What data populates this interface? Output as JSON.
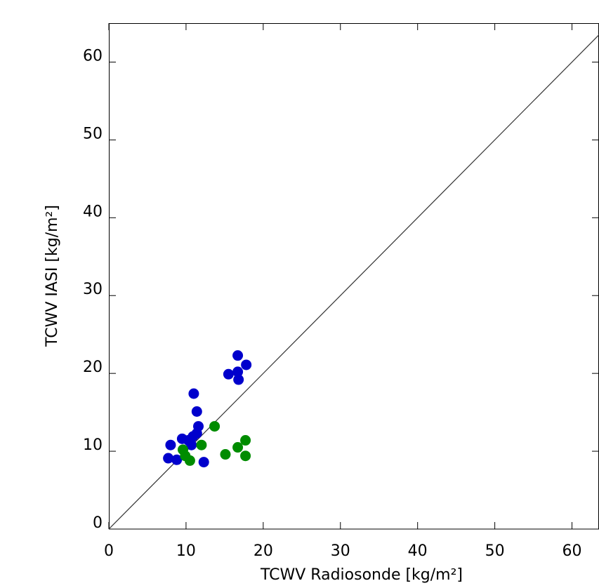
{
  "chart_data": {
    "type": "scatter",
    "x_label": "TCWV Radiosonde [kg/m²]",
    "y_label": "TCWV IASI [kg/m²]",
    "xlim": [
      0,
      63.5
    ],
    "ylim": [
      0,
      65
    ],
    "xticks": [
      0,
      10,
      20,
      30,
      40,
      50,
      60
    ],
    "yticks": [
      0,
      10,
      20,
      30,
      40,
      50,
      60
    ],
    "one_to_one_line": true,
    "series": [
      {
        "color": "#0000cc",
        "x": [
          7.7,
          8.0,
          8.8,
          9.5,
          10.3,
          10.7,
          11.0,
          11.4,
          11.6,
          11.4,
          10.9,
          12.3,
          15.5,
          16.7,
          16.7,
          16.8,
          17.8
        ],
        "y": [
          9.1,
          10.8,
          8.9,
          11.6,
          11.4,
          10.8,
          17.4,
          15.1,
          13.2,
          12.3,
          11.9,
          8.6,
          19.9,
          22.3,
          20.2,
          19.2,
          21.1
        ]
      },
      {
        "color": "#008c00",
        "x": [
          9.6,
          9.9,
          10.5,
          12.0,
          13.7,
          15.1,
          16.7,
          17.7,
          17.7
        ],
        "y": [
          10.2,
          9.4,
          8.8,
          10.8,
          13.2,
          9.6,
          10.5,
          11.4,
          9.4
        ]
      }
    ]
  }
}
